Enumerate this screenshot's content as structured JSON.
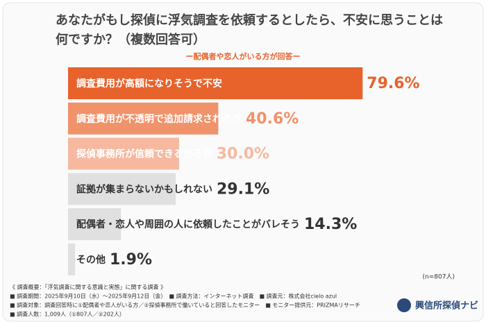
{
  "chart_data": {
    "type": "bar",
    "orientation": "horizontal",
    "title": [
      "あなたがもし探偵に浮気調査を依頼するとしたら、不安に思うことは",
      "何ですか？（複数回答可）"
    ],
    "subtitle": "ー配偶者や恋人がいる方が回答ー",
    "categories": [
      "調査費用が高額になりそうで不安",
      "調査費用が不透明で追加請求されそう",
      "探偵事務所が信頼できるか不安",
      "証拠が集まらないかもしれない",
      "配偶者・恋人や周囲の人に依頼したことがバレそう",
      "その他"
    ],
    "values": [
      79.6,
      40.6,
      30.0,
      29.1,
      14.3,
      1.9
    ],
    "value_labels": [
      "79.6%",
      "40.6%",
      "30.0%",
      "29.1%",
      "14.3%",
      "1.9%"
    ],
    "colors": [
      "#e8622c",
      "#f0926a",
      "#f6b9a0",
      "#e0e0e0",
      "#e0e0e0",
      "#e0e0e0"
    ],
    "text_colors": [
      "#ffffff",
      "#ffffff",
      "#ffffff",
      "#333333",
      "#333333",
      "#333333"
    ],
    "value_label_colors": [
      "#e8622c",
      "#f0926a",
      "#f6b9a0",
      "#333333",
      "#333333",
      "#333333"
    ],
    "sample_note": "(n=807人)",
    "notes": [
      "《 調査概要：「浮気調査に関する意識と実態」に関する調査 》",
      "■ 調査期間：2025年9月10日（水）～2025年9月12日（金）　■ 調査方法：インターネット調査　■ 調査元：株式会社cielo azul",
      "■ 調査対象：調査回答時に①配偶者や恋人がいる方／②探偵事務所で働いていると回答したモニター　■ モニター提供元：PRIZMAリサーチ",
      "■ 調査人数：1,009人（①807人／②202人）"
    ],
    "logo": "興信所探偵ナビ"
  }
}
